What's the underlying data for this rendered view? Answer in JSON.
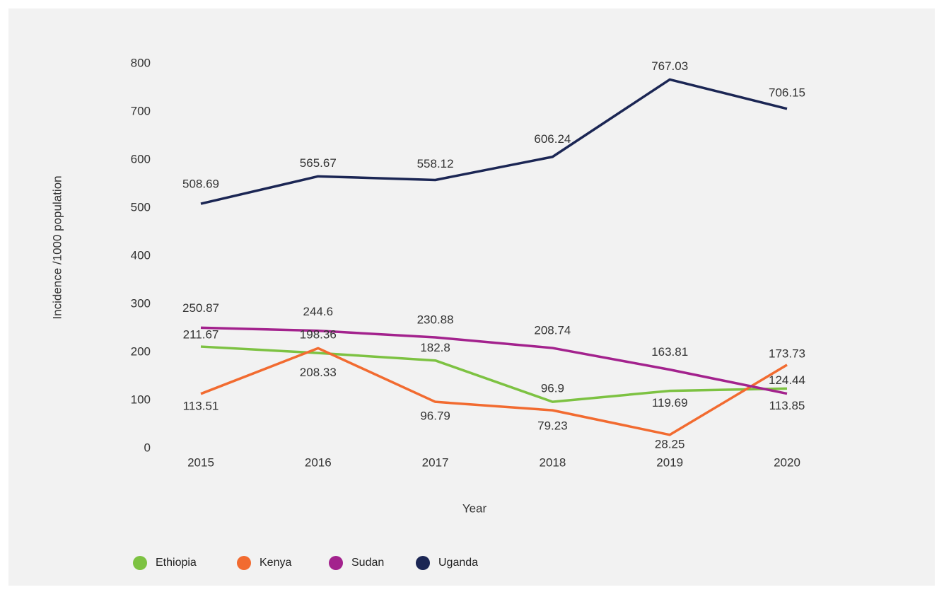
{
  "chart_data": {
    "type": "line",
    "y_label": "Incidence /1000 population",
    "x_label": "Year",
    "categories": [
      "2015",
      "2016",
      "2017",
      "2018",
      "2019",
      "2020"
    ],
    "series": [
      {
        "name": "Ethiopia",
        "color": "#7dc242",
        "values": [
          211.67,
          198.36,
          182.8,
          96.9,
          119.69,
          124.44
        ]
      },
      {
        "name": "Kenya",
        "color": "#f26b30",
        "values": [
          113.51,
          208.33,
          96.79,
          79.23,
          28.25,
          173.73
        ]
      },
      {
        "name": "Sudan",
        "color": "#a3228d",
        "values": [
          250.87,
          244.6,
          230.88,
          208.74,
          163.81,
          113.85
        ]
      },
      {
        "name": "Uganda",
        "color": "#1b2654",
        "values": [
          508.69,
          565.67,
          558.12,
          606.24,
          767.03,
          706.15
        ]
      }
    ],
    "ylim": [
      0,
      800
    ],
    "yticks": [
      0,
      100,
      200,
      300,
      400,
      500,
      600,
      700,
      800
    ],
    "grid": false,
    "legend": "bottom"
  }
}
